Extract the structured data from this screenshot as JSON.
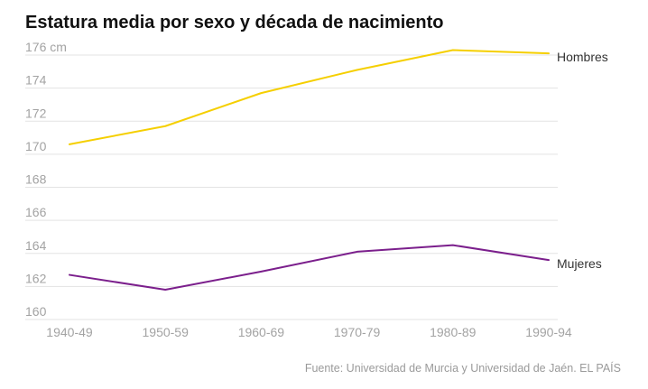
{
  "title": "Estatura media por sexo y década de nacimiento",
  "source": "Fuente: Universidad de Murcia y Universidad de Jaén. EL PAÍS",
  "chart_data": {
    "type": "line",
    "title": "Estatura media por sexo y década de nacimiento",
    "xlabel": "",
    "ylabel": "",
    "categories": [
      "1940-49",
      "1950-59",
      "1960-69",
      "1970-79",
      "1980-89",
      "1990-94"
    ],
    "ylim": [
      160,
      176
    ],
    "yticks": [
      160,
      162,
      164,
      166,
      168,
      170,
      172,
      174,
      176
    ],
    "ytick_labels": [
      "160",
      "162",
      "164",
      "166",
      "168",
      "170",
      "172",
      "174",
      "176 cm"
    ],
    "grid": true,
    "legend": "inline labels at line ends",
    "series": [
      {
        "name": "Hombres",
        "color": "#f5cf00",
        "values": [
          170.6,
          171.7,
          173.7,
          175.1,
          176.3,
          176.1
        ]
      },
      {
        "name": "Mujeres",
        "color": "#7b1f8c",
        "values": [
          162.7,
          161.8,
          162.9,
          164.1,
          164.5,
          163.6
        ]
      }
    ]
  }
}
